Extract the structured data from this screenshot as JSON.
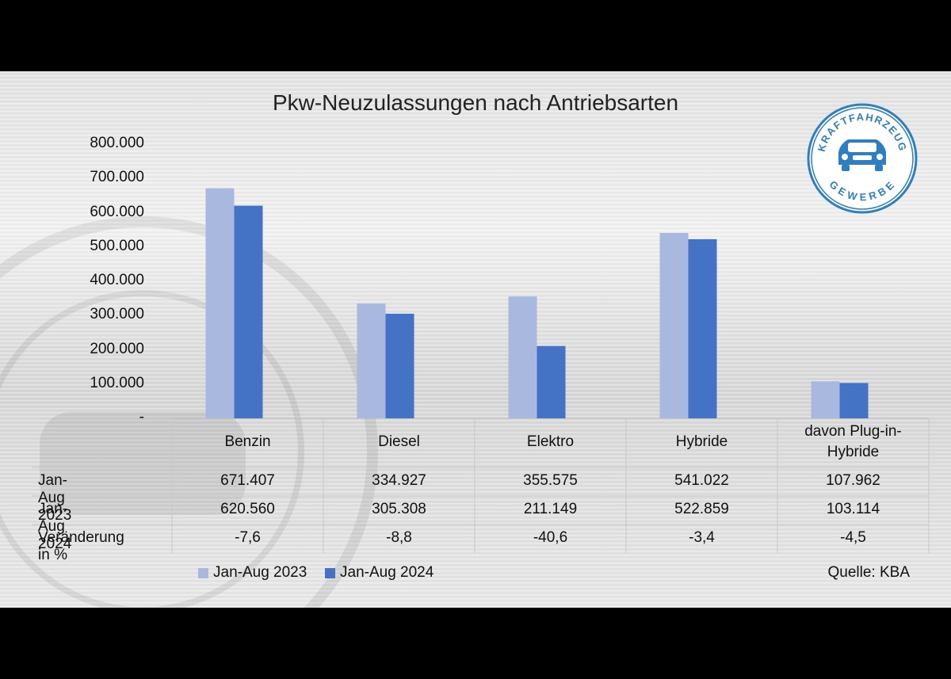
{
  "chart_data": {
    "type": "bar",
    "title": "Pkw-Neuzulassungen nach Antriebsarten",
    "categories": [
      "Benzin",
      "Diesel",
      "Elektro",
      "Hybride",
      "davon Plug-in-Hybride"
    ],
    "category_lines": [
      [
        "Benzin"
      ],
      [
        "Diesel"
      ],
      [
        "Elektro"
      ],
      [
        "Hybride"
      ],
      [
        "davon Plug-in-",
        "Hybride"
      ]
    ],
    "series": [
      {
        "name": "Jan-Aug 2023",
        "values": [
          671407,
          334927,
          355575,
          541022,
          107962
        ],
        "labels": [
          "671.407",
          "334.927",
          "355.575",
          "541.022",
          "107.962"
        ],
        "color": "#a9b8df"
      },
      {
        "name": "Jan-Aug 2024",
        "values": [
          620560,
          305308,
          211149,
          522859,
          103114
        ],
        "labels": [
          "620.560",
          "305.308",
          "211.149",
          "522.859",
          "103.114"
        ],
        "color": "#4472c4"
      }
    ],
    "change_row": {
      "label": "Veränderung in %",
      "values": [
        "-7,6",
        "-8,8",
        "-40,6",
        "-3,4",
        "-4,5"
      ]
    },
    "yticks": [
      0,
      100000,
      200000,
      300000,
      400000,
      500000,
      600000,
      700000,
      800000
    ],
    "ytick_labels": [
      "-",
      "100.000",
      "200.000",
      "300.000",
      "400.000",
      "500.000",
      "600.000",
      "700.000",
      "800.000"
    ],
    "ylim": [
      0,
      800000
    ],
    "legend_position": "bottom-left",
    "grid": false
  },
  "source": "Quelle: KBA",
  "logo": {
    "text_top": "KRAFTFAHRZEUG",
    "text_bottom": "GEWERBE",
    "color": "#2e7fc1",
    "icon": "car-icon"
  }
}
